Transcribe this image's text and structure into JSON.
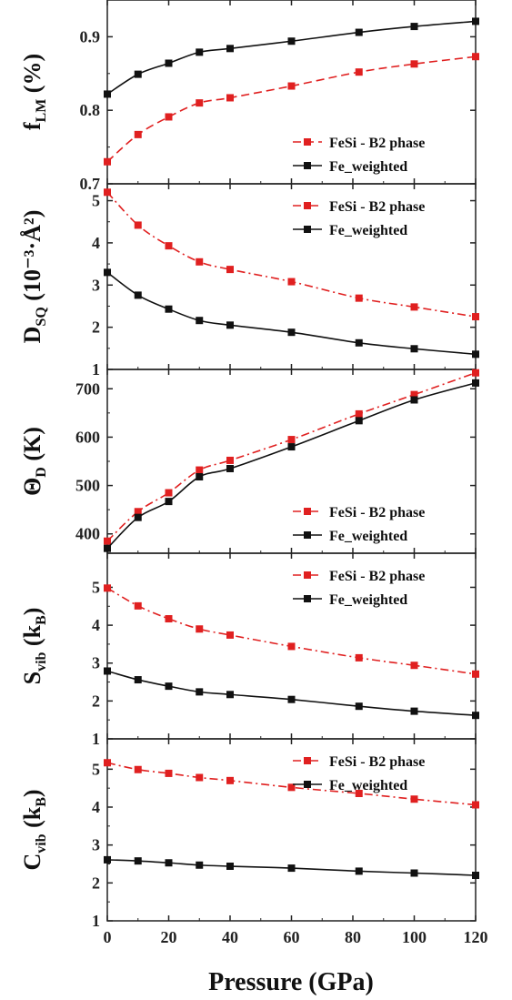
{
  "chart_data": [
    {
      "type": "line",
      "ylabel_main": "f",
      "ylabel_sub": "LM",
      "ylabel_tail": " (%)",
      "ylim": [
        0.7,
        0.95
      ],
      "yticks": [
        "0.7",
        "0.8",
        "0.9"
      ],
      "ytick_values": [
        0.7,
        0.8,
        0.9
      ],
      "x": [
        0,
        10,
        20,
        30,
        40,
        60,
        82,
        100,
        120
      ],
      "series": [
        {
          "name": "FeSi - B2 phase",
          "color": "#e02020",
          "dash": "dash",
          "values": [
            0.73,
            0.767,
            0.791,
            0.81,
            0.817,
            0.833,
            0.852,
            0.863,
            0.873
          ]
        },
        {
          "name": "Fe_weighted",
          "color": "#111111",
          "dash": "solid",
          "values": [
            0.822,
            0.849,
            0.864,
            0.879,
            0.884,
            0.894,
            0.906,
            0.914,
            0.921
          ]
        }
      ],
      "legend": "bottom-right"
    },
    {
      "type": "line",
      "ylabel_main": "D",
      "ylabel_sub": "SQ",
      "ylabel_tail": " (10⁻³·Å²)",
      "ylim": [
        1,
        5.4
      ],
      "yticks": [
        "1",
        "2",
        "3",
        "4",
        "5"
      ],
      "ytick_values": [
        1,
        2,
        3,
        4,
        5
      ],
      "x": [
        0,
        10,
        20,
        30,
        40,
        60,
        82,
        100,
        120
      ],
      "series": [
        {
          "name": "FeSi - B2 phase",
          "color": "#e02020",
          "dash": "dashdot",
          "values": [
            5.2,
            4.42,
            3.93,
            3.55,
            3.37,
            3.08,
            2.69,
            2.48,
            2.25
          ]
        },
        {
          "name": "Fe_weighted",
          "color": "#111111",
          "dash": "solid",
          "values": [
            3.3,
            2.76,
            2.43,
            2.16,
            2.05,
            1.88,
            1.63,
            1.49,
            1.36
          ]
        }
      ],
      "legend": "top-right"
    },
    {
      "type": "line",
      "ylabel_main": "Θ",
      "ylabel_sub": "D",
      "ylabel_tail": " (K)",
      "ylim": [
        360,
        740
      ],
      "yticks": [
        "400",
        "500",
        "600",
        "700"
      ],
      "ytick_values": [
        400,
        500,
        600,
        700
      ],
      "x": [
        0,
        10,
        20,
        30,
        40,
        60,
        82,
        100,
        120
      ],
      "series": [
        {
          "name": "FeSi - B2 phase",
          "color": "#e02020",
          "dash": "dashdot",
          "values": [
            385,
            446,
            485,
            532,
            552,
            595,
            648,
            688,
            733
          ]
        },
        {
          "name": "Fe_weighted",
          "color": "#111111",
          "dash": "solid",
          "values": [
            370,
            434,
            467,
            518,
            535,
            580,
            634,
            677,
            712
          ]
        }
      ],
      "legend": "bottom-right"
    },
    {
      "type": "line",
      "ylabel_main": "S",
      "ylabel_sub": "vib",
      "ylabel_tail": " (k",
      "ylabel_tail_sub": "B",
      "ylabel_end": ")",
      "ylim": [
        1,
        5.9
      ],
      "yticks": [
        "1",
        "2",
        "3",
        "4",
        "5"
      ],
      "ytick_values": [
        1,
        2,
        3,
        4,
        5
      ],
      "x": [
        0,
        10,
        20,
        30,
        40,
        60,
        82,
        100,
        120
      ],
      "series": [
        {
          "name": "FeSi - B2 phase",
          "color": "#e02020",
          "dash": "dashdot",
          "values": [
            4.98,
            4.51,
            4.17,
            3.9,
            3.74,
            3.44,
            3.14,
            2.94,
            2.71
          ]
        },
        {
          "name": "Fe_weighted",
          "color": "#111111",
          "dash": "solid",
          "values": [
            2.79,
            2.56,
            2.39,
            2.24,
            2.17,
            2.04,
            1.86,
            1.73,
            1.62
          ]
        }
      ],
      "legend": "top-right"
    },
    {
      "type": "line",
      "ylabel_main": "C",
      "ylabel_sub": "vib",
      "ylabel_tail": " (k",
      "ylabel_tail_sub": "B",
      "ylabel_end": ")",
      "ylim": [
        1,
        5.8
      ],
      "yticks": [
        "1",
        "2",
        "3",
        "4",
        "5"
      ],
      "ytick_values": [
        1,
        2,
        3,
        4,
        5
      ],
      "x": [
        0,
        10,
        20,
        30,
        40,
        60,
        82,
        100,
        120
      ],
      "series": [
        {
          "name": "FeSi - B2 phase",
          "color": "#e02020",
          "dash": "dashdot",
          "values": [
            5.17,
            4.99,
            4.89,
            4.78,
            4.7,
            4.52,
            4.36,
            4.21,
            4.06
          ]
        },
        {
          "name": "Fe_weighted",
          "color": "#111111",
          "dash": "solid",
          "values": [
            2.61,
            2.58,
            2.53,
            2.47,
            2.44,
            2.39,
            2.31,
            2.26,
            2.2
          ]
        }
      ],
      "legend": "top-right"
    }
  ],
  "xaxis": {
    "label": "Pressure (GPa)",
    "xlim": [
      0,
      120
    ],
    "ticks": [
      "0",
      "20",
      "40",
      "60",
      "80",
      "100",
      "120"
    ],
    "tick_values": [
      0,
      20,
      40,
      60,
      80,
      100,
      120
    ]
  }
}
